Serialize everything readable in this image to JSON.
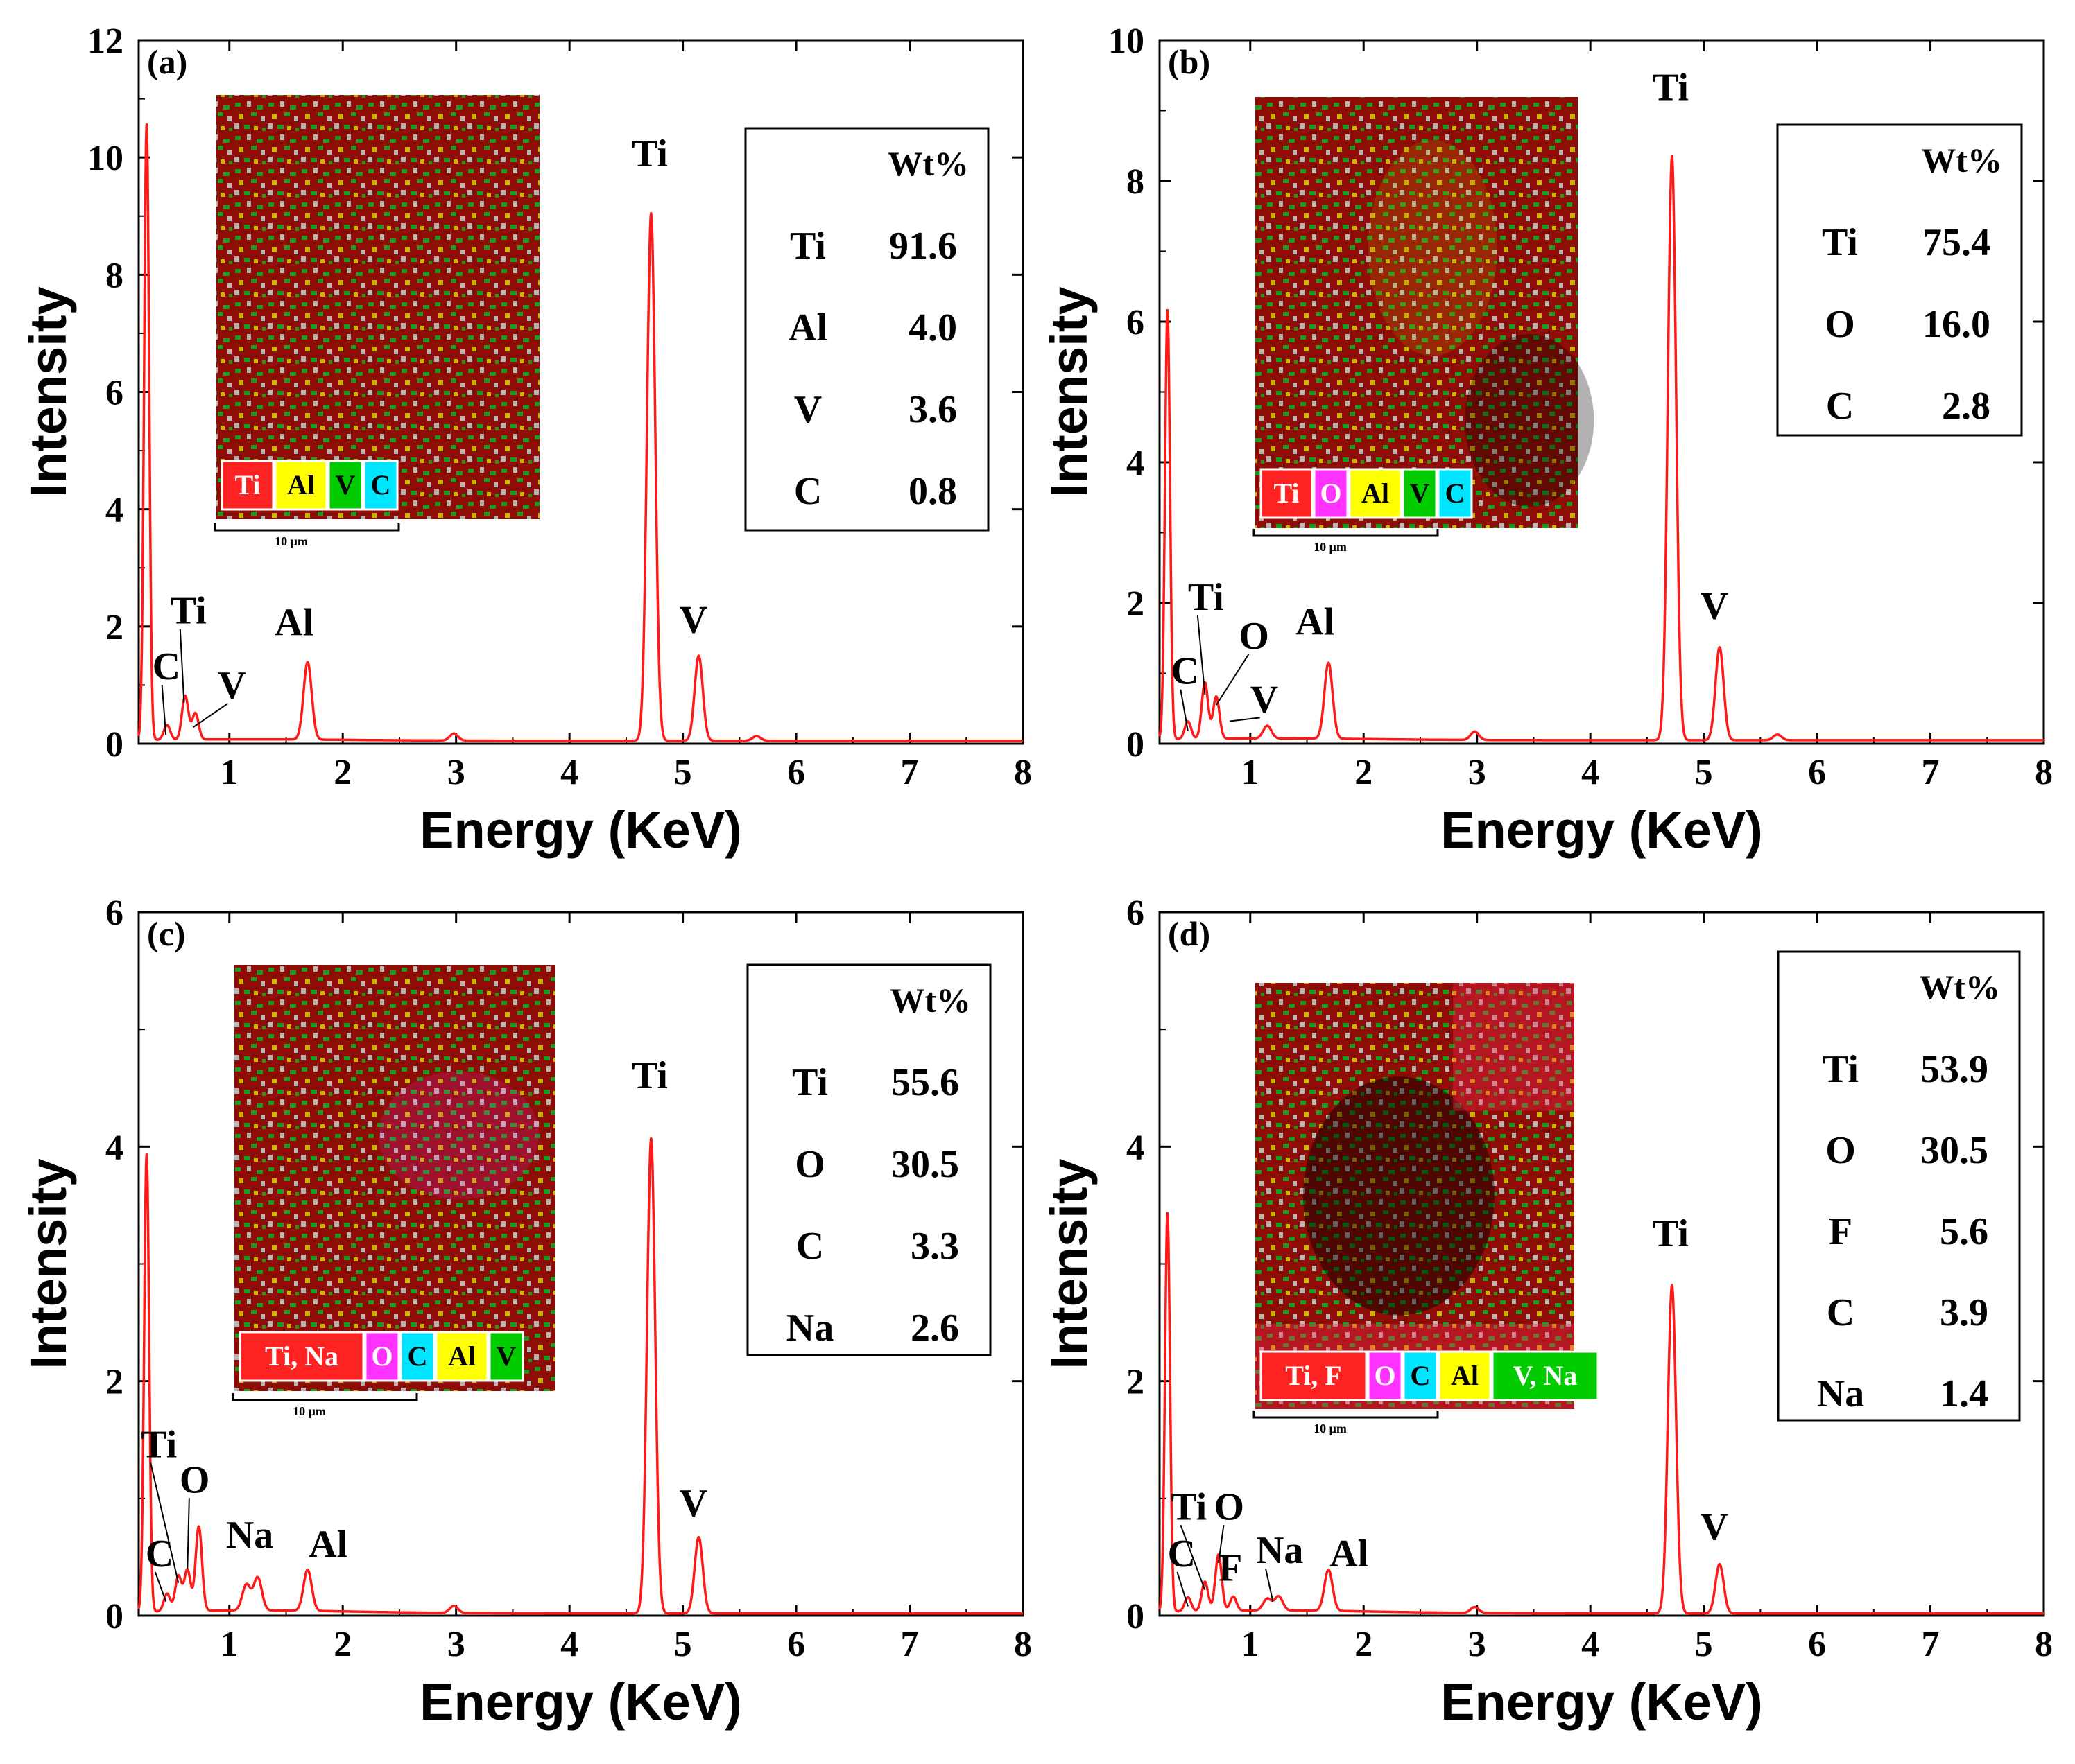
{
  "figure": {
    "axis_title_x": "Energy (KeV)",
    "axis_title_y": "Intensity",
    "scale_bar_label": "10 μm",
    "table_header": "Wt%"
  },
  "colors": {
    "spectrum_line": "#ff1a1a",
    "map_bg": "#8e0d07",
    "Ti": "#ff2222",
    "Al": "#ffff00",
    "V": "#00cc00",
    "C": "#00e5ff",
    "O": "#ff33ff",
    "Na": "#ff2222",
    "F": "#ff2222",
    "grey": "#b5b5b5"
  },
  "chart_data": [
    {
      "type": "line",
      "panel_label": "(a)",
      "xlabel": "Energy (KeV)",
      "ylabel": "Intensity",
      "xlim": [
        0.2,
        8
      ],
      "ylim": [
        0,
        12
      ],
      "xticks": [
        1,
        2,
        3,
        4,
        5,
        6,
        7,
        8
      ],
      "yticks": [
        0,
        2,
        4,
        6,
        8,
        10,
        12
      ],
      "baseline": 0.05,
      "peaks": [
        {
          "x": 0.27,
          "y": 10.5
        },
        {
          "x": 0.45,
          "y": 0.25
        },
        {
          "x": 0.61,
          "y": 0.75
        },
        {
          "x": 0.7,
          "y": 0.45
        },
        {
          "x": 1.69,
          "y": 1.32
        },
        {
          "x": 2.98,
          "y": 0.12
        },
        {
          "x": 4.72,
          "y": 9.0
        },
        {
          "x": 5.14,
          "y": 1.45
        },
        {
          "x": 5.65,
          "y": 0.08
        }
      ],
      "peak_labels": [
        {
          "text": "C",
          "x": 0.32,
          "y": 1.1,
          "line_to": [
            0.44,
            0.15
          ]
        },
        {
          "text": "Ti",
          "x": 0.48,
          "y": 2.05,
          "line_to": [
            0.6,
            0.7
          ]
        },
        {
          "text": "V",
          "x": 0.9,
          "y": 0.78,
          "line_to": [
            0.68,
            0.28
          ]
        },
        {
          "text": "Al",
          "x": 1.4,
          "y": 1.85
        },
        {
          "text": "Ti",
          "x": 4.55,
          "y": 9.85
        },
        {
          "text": "V",
          "x": 4.97,
          "y": 1.9
        }
      ],
      "wt_table": [
        {
          "element": "Ti",
          "value": "91.6"
        },
        {
          "element": "Al",
          "value": "4.0"
        },
        {
          "element": "V",
          "value": "3.6"
        },
        {
          "element": "C",
          "value": "0.8"
        }
      ],
      "map_legend": [
        {
          "label": "Ti",
          "color": "#ff2222",
          "text_color": "#ffffff"
        },
        {
          "label": "Al",
          "color": "#ffff00",
          "text_color": "#000000"
        },
        {
          "label": "V",
          "color": "#00cc00",
          "text_color": "#000000"
        },
        {
          "label": "C",
          "color": "#00e5ff",
          "text_color": "#000000"
        }
      ]
    },
    {
      "type": "line",
      "panel_label": "(b)",
      "xlabel": "Energy (KeV)",
      "ylabel": "Intensity",
      "xlim": [
        0.2,
        8
      ],
      "ylim": [
        0,
        10
      ],
      "xticks": [
        1,
        2,
        3,
        4,
        5,
        6,
        7,
        8
      ],
      "yticks": [
        0,
        2,
        4,
        6,
        8,
        10
      ],
      "baseline": 0.05,
      "peaks": [
        {
          "x": 0.27,
          "y": 6.1
        },
        {
          "x": 0.45,
          "y": 0.25
        },
        {
          "x": 0.6,
          "y": 0.8
        },
        {
          "x": 0.7,
          "y": 0.6
        },
        {
          "x": 1.15,
          "y": 0.18
        },
        {
          "x": 1.69,
          "y": 1.08
        },
        {
          "x": 2.98,
          "y": 0.12
        },
        {
          "x": 4.72,
          "y": 8.3
        },
        {
          "x": 5.14,
          "y": 1.32
        },
        {
          "x": 5.65,
          "y": 0.08
        }
      ],
      "peak_labels": [
        {
          "text": "C",
          "x": 0.3,
          "y": 0.85,
          "line_to": [
            0.45,
            0.18
          ]
        },
        {
          "text": "Ti",
          "x": 0.45,
          "y": 1.9,
          "line_to": [
            0.6,
            0.7
          ]
        },
        {
          "text": "O",
          "x": 0.9,
          "y": 1.35,
          "line_to": [
            0.7,
            0.55
          ]
        },
        {
          "text": "V",
          "x": 1.0,
          "y": 0.45,
          "line_to": [
            0.82,
            0.32
          ]
        },
        {
          "text": "Al",
          "x": 1.4,
          "y": 1.55
        },
        {
          "text": "Ti",
          "x": 4.55,
          "y": 9.15
        },
        {
          "text": "V",
          "x": 4.97,
          "y": 1.78
        }
      ],
      "wt_table": [
        {
          "element": "Ti",
          "value": "75.4"
        },
        {
          "element": "O",
          "value": "16.0"
        },
        {
          "element": "C",
          "value": "2.8"
        }
      ],
      "map_legend": [
        {
          "label": "Ti",
          "color": "#ff2222",
          "text_color": "#ffffff"
        },
        {
          "label": "O",
          "color": "#ff33ff",
          "text_color": "#ffffff"
        },
        {
          "label": "Al",
          "color": "#ffff00",
          "text_color": "#000000"
        },
        {
          "label": "V",
          "color": "#00cc00",
          "text_color": "#000000"
        },
        {
          "label": "C",
          "color": "#00e5ff",
          "text_color": "#000000"
        }
      ]
    },
    {
      "type": "line",
      "panel_label": "(c)",
      "xlabel": "Energy (KeV)",
      "ylabel": "Intensity",
      "xlim": [
        0.2,
        8
      ],
      "ylim": [
        0,
        6
      ],
      "xticks": [
        1,
        2,
        3,
        4,
        5,
        6,
        7,
        8
      ],
      "yticks": [
        0,
        2,
        4,
        6
      ],
      "baseline": 0.02,
      "peaks": [
        {
          "x": 0.27,
          "y": 3.9
        },
        {
          "x": 0.45,
          "y": 0.15
        },
        {
          "x": 0.55,
          "y": 0.3
        },
        {
          "x": 0.63,
          "y": 0.35
        },
        {
          "x": 0.73,
          "y": 0.72
        },
        {
          "x": 1.15,
          "y": 0.22
        },
        {
          "x": 1.25,
          "y": 0.28
        },
        {
          "x": 1.69,
          "y": 0.35
        },
        {
          "x": 2.98,
          "y": 0.06
        },
        {
          "x": 4.72,
          "y": 4.05
        },
        {
          "x": 5.14,
          "y": 0.65
        }
      ],
      "peak_labels": [
        {
          "text": "C",
          "x": 0.26,
          "y": 0.42,
          "line_to": [
            0.44,
            0.12
          ]
        },
        {
          "text": "Ti",
          "x": 0.22,
          "y": 1.35,
          "line_to": [
            0.55,
            0.28
          ]
        },
        {
          "text": "O",
          "x": 0.56,
          "y": 1.05,
          "line_to": [
            0.63,
            0.4
          ]
        },
        {
          "text": "Na",
          "x": 0.97,
          "y": 0.58
        },
        {
          "text": "Al",
          "x": 1.7,
          "y": 0.5
        },
        {
          "text": "Ti",
          "x": 4.55,
          "y": 4.5
        },
        {
          "text": "V",
          "x": 4.97,
          "y": 0.85
        }
      ],
      "wt_table": [
        {
          "element": "Ti",
          "value": "55.6"
        },
        {
          "element": "O",
          "value": "30.5"
        },
        {
          "element": "C",
          "value": "3.3"
        },
        {
          "element": "Na",
          "value": "2.6"
        }
      ],
      "map_legend": [
        {
          "label": "Ti, Na",
          "color": "#ff2222",
          "text_color": "#ffffff"
        },
        {
          "label": "O",
          "color": "#ff33ff",
          "text_color": "#ffffff"
        },
        {
          "label": "C",
          "color": "#00e5ff",
          "text_color": "#000000"
        },
        {
          "label": "Al",
          "color": "#ffff00",
          "text_color": "#000000"
        },
        {
          "label": "V",
          "color": "#00cc00",
          "text_color": "#000000"
        }
      ]
    },
    {
      "type": "line",
      "panel_label": "(d)",
      "xlabel": "Energy (KeV)",
      "ylabel": "Intensity",
      "xlim": [
        0.2,
        8
      ],
      "ylim": [
        0,
        6
      ],
      "xticks": [
        1,
        2,
        3,
        4,
        5,
        6,
        7,
        8
      ],
      "yticks": [
        0,
        2,
        4,
        6
      ],
      "baseline": 0.02,
      "peaks": [
        {
          "x": 0.27,
          "y": 3.4
        },
        {
          "x": 0.45,
          "y": 0.12
        },
        {
          "x": 0.6,
          "y": 0.25
        },
        {
          "x": 0.72,
          "y": 0.48
        },
        {
          "x": 0.85,
          "y": 0.12
        },
        {
          "x": 1.15,
          "y": 0.1
        },
        {
          "x": 1.25,
          "y": 0.12
        },
        {
          "x": 1.69,
          "y": 0.35
        },
        {
          "x": 2.98,
          "y": 0.05
        },
        {
          "x": 4.72,
          "y": 2.8
        },
        {
          "x": 5.14,
          "y": 0.42
        }
      ],
      "peak_labels": [
        {
          "text": "C",
          "x": 0.27,
          "y": 0.42,
          "line_to": [
            0.45,
            0.08
          ]
        },
        {
          "text": "Ti",
          "x": 0.3,
          "y": 0.82,
          "line_to": [
            0.6,
            0.22
          ]
        },
        {
          "text": "O",
          "x": 0.68,
          "y": 0.82,
          "line_to": [
            0.72,
            0.45
          ]
        },
        {
          "text": "F",
          "x": 0.72,
          "y": 0.3
        },
        {
          "text": "Na",
          "x": 1.05,
          "y": 0.45,
          "line_to": [
            1.2,
            0.12
          ]
        },
        {
          "text": "Al",
          "x": 1.7,
          "y": 0.42
        },
        {
          "text": "Ti",
          "x": 4.55,
          "y": 3.15
        },
        {
          "text": "V",
          "x": 4.97,
          "y": 0.65
        }
      ],
      "wt_table": [
        {
          "element": "Ti",
          "value": "53.9"
        },
        {
          "element": "O",
          "value": "30.5"
        },
        {
          "element": "F",
          "value": "5.6"
        },
        {
          "element": "C",
          "value": "3.9"
        },
        {
          "element": "Na",
          "value": "1.4"
        }
      ],
      "map_legend": [
        {
          "label": "Ti, F",
          "color": "#ff2222",
          "text_color": "#ffffff"
        },
        {
          "label": "O",
          "color": "#ff33ff",
          "text_color": "#ffffff"
        },
        {
          "label": "C",
          "color": "#00e5ff",
          "text_color": "#000000"
        },
        {
          "label": "Al",
          "color": "#ffff00",
          "text_color": "#000000"
        },
        {
          "label": "V, Na",
          "color": "#00cc00",
          "text_color": "#ffffff"
        }
      ]
    }
  ]
}
